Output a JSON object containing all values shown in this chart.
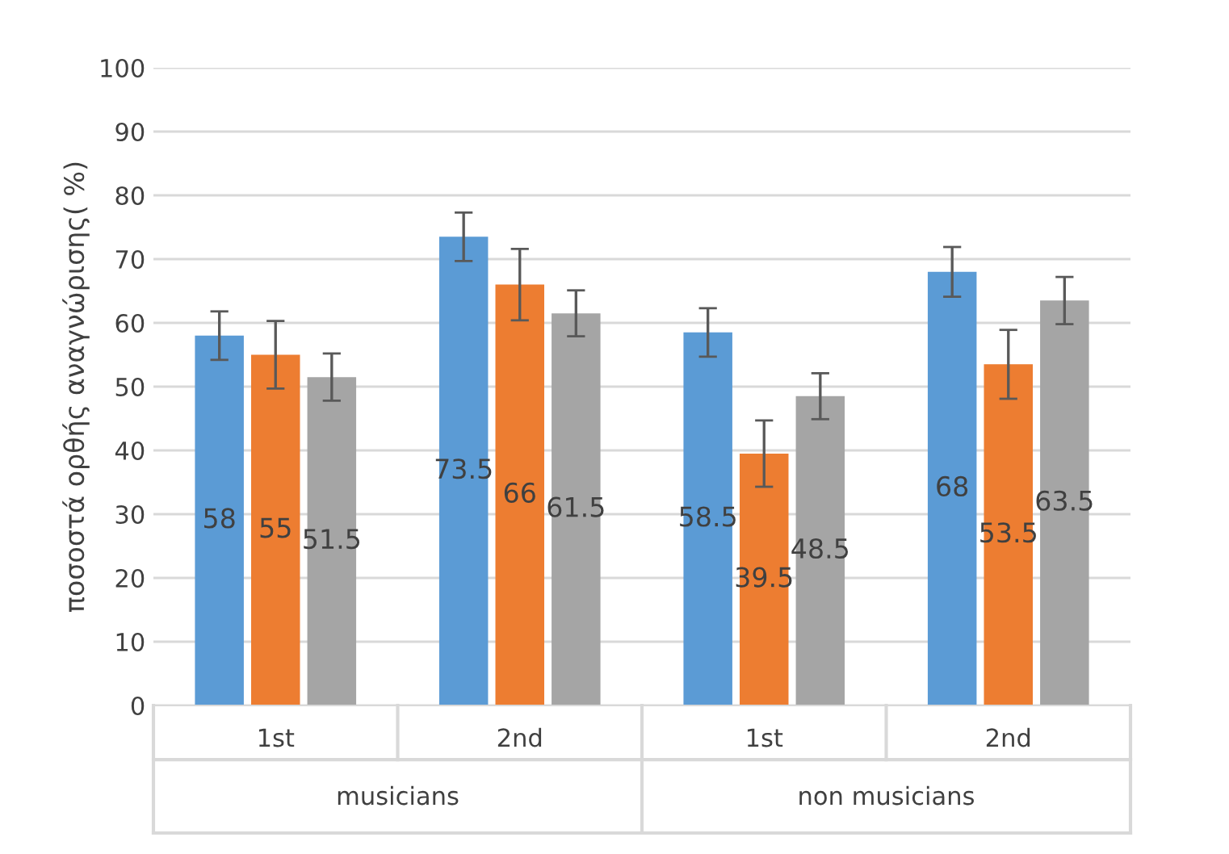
{
  "chart_data": {
    "type": "bar",
    "ylabel": "ποσοστά ορθής αναγνώρισης( %)",
    "categories": [
      "1st",
      "2nd",
      "1st",
      "2nd"
    ],
    "series": [
      {
        "color": "#5b9bd5",
        "values": [
          58,
          73.5,
          58.5,
          68
        ],
        "errors": [
          3.8,
          3.8,
          3.8,
          3.9
        ]
      },
      {
        "color": "#ed7d31",
        "values": [
          55,
          66,
          39.5,
          53.5
        ],
        "errors": [
          5.3,
          5.6,
          5.2,
          5.4
        ]
      },
      {
        "color": "#a5a5a5",
        "values": [
          51.5,
          61.5,
          48.5,
          63.5
        ],
        "errors": [
          3.7,
          3.6,
          3.6,
          3.7
        ]
      }
    ],
    "annotations": [
      "musicians",
      "non musicians"
    ],
    "ylim": [
      0,
      100
    ],
    "yticks": [
      0,
      10,
      20,
      30,
      40,
      50,
      60,
      70,
      80,
      90,
      100
    ],
    "grid": "y",
    "data_labels": true,
    "legend": false
  }
}
